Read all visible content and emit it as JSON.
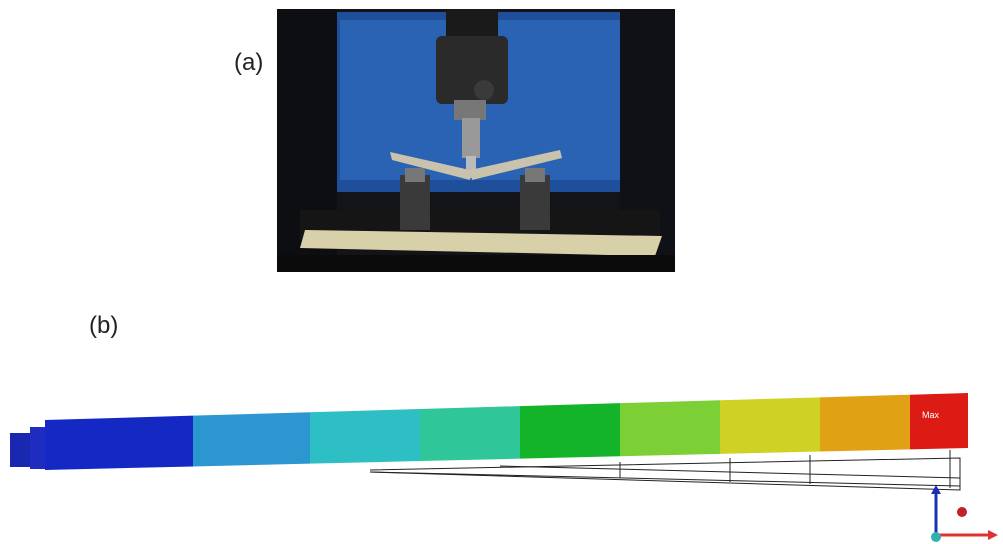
{
  "panels": [
    {
      "label": "(a)"
    },
    {
      "label": "(b)",
      "annotation": "Max"
    }
  ]
}
